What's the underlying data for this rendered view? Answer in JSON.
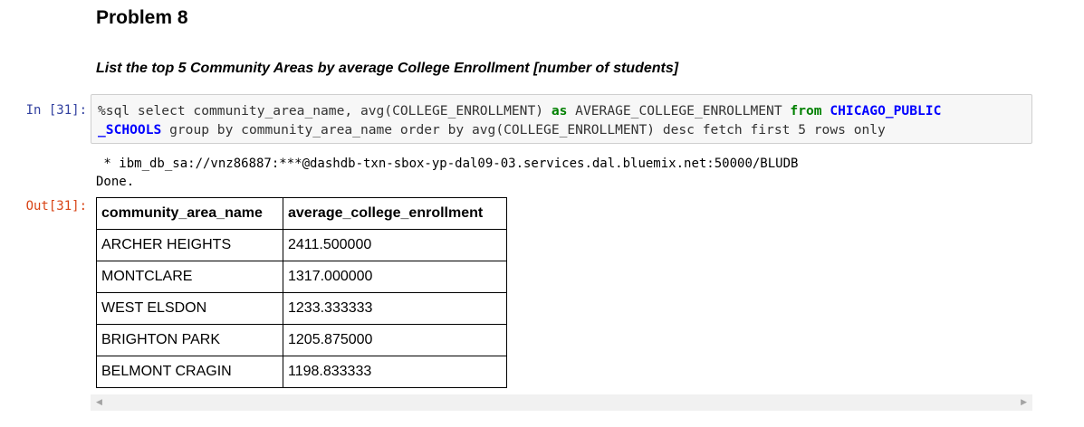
{
  "markdown": {
    "heading": "Problem 8",
    "subheading": "List the top 5 Community Areas by average College Enrollment [number of students]"
  },
  "input_cell": {
    "prompt": "In [31]:",
    "code": {
      "line1_a": "%sql select community_area_name, avg(COLLEGE_ENROLLMENT) ",
      "line1_kw_as": "as",
      "line1_b": " AVERAGE_COLLEGE_ENROLLMENT ",
      "line1_kw_from": "from",
      "line1_c": " ",
      "line1_table": "CHICAGO_PUBLIC",
      "line2_table": "_SCHOOLS",
      "line2_rest": " group by community_area_name order by avg(COLLEGE_ENROLLMENT) desc fetch first 5 rows only"
    }
  },
  "output_cell": {
    "prompt": "Out[31]:",
    "stdout_line1": " * ibm_db_sa://vnz86887:***@dashdb-txn-sbox-yp-dal09-03.services.dal.bluemix.net:50000/BLUDB",
    "stdout_line2": "Done.",
    "table": {
      "headers": [
        "community_area_name",
        "average_college_enrollment"
      ],
      "rows": [
        [
          "ARCHER HEIGHTS",
          "2411.500000"
        ],
        [
          "MONTCLARE",
          "1317.000000"
        ],
        [
          "WEST ELSDON",
          "1233.333333"
        ],
        [
          "BRIGHTON PARK",
          "1205.875000"
        ],
        [
          "BELMONT CRAGIN",
          "1198.833333"
        ]
      ]
    }
  },
  "scrollbar": {
    "left_arrow_icon": "triangle-left-icon",
    "right_arrow_icon": "triangle-right-icon"
  },
  "colors": {
    "in_prompt": "#303f9f",
    "out_prompt": "#d84315",
    "keyword": "#008000",
    "table_name": "#0000ff",
    "code_background": "#f7f7f7"
  }
}
